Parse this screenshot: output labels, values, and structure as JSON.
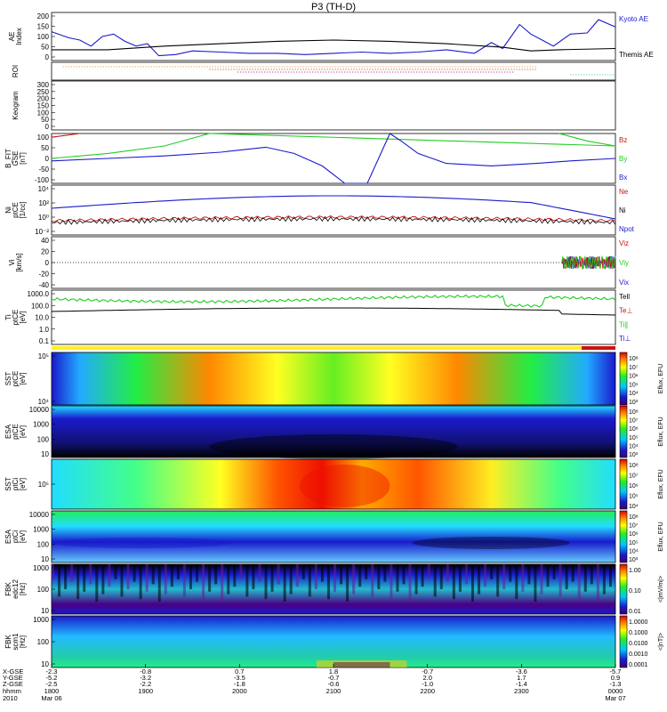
{
  "title": "P3 (TH-D)",
  "chart_data": [
    {
      "type": "line",
      "ylabel": "AE Index",
      "ylim": [
        0,
        200
      ],
      "yticks": [
        "200",
        "150",
        "100",
        "50",
        "0"
      ],
      "series": [
        {
          "name": "Kyoto AE",
          "color": "#1a1acc",
          "x": [
            0.0,
            0.03,
            0.05,
            0.07,
            0.09,
            0.11,
            0.13,
            0.15,
            0.17,
            0.19,
            0.22,
            0.25,
            0.3,
            0.35,
            0.4,
            0.45,
            0.5,
            0.55,
            0.6,
            0.65,
            0.7,
            0.75,
            0.78,
            0.8,
            0.83,
            0.85,
            0.87,
            0.89,
            0.92,
            0.95,
            0.97,
            1.0
          ],
          "y": [
            120,
            95,
            85,
            60,
            100,
            110,
            80,
            60,
            70,
            20,
            25,
            40,
            35,
            30,
            30,
            25,
            30,
            35,
            30,
            35,
            45,
            30,
            75,
            50,
            150,
            110,
            85,
            60,
            110,
            115,
            170,
            140
          ]
        },
        {
          "name": "Themis AE",
          "color": "#000000",
          "x": [
            0.0,
            0.1,
            0.2,
            0.3,
            0.4,
            0.5,
            0.6,
            0.7,
            0.8,
            0.85,
            0.9,
            1.0
          ],
          "y": [
            45,
            45,
            60,
            70,
            80,
            85,
            80,
            70,
            55,
            40,
            45,
            50
          ]
        }
      ]
    },
    {
      "type": "line",
      "ylabel": "ROI",
      "series": []
    },
    {
      "type": "line",
      "ylabel": "Keogram",
      "ylim": [
        0,
        300
      ],
      "yticks": [
        "300",
        "250",
        "200",
        "150",
        "100",
        "50",
        "0"
      ],
      "series": []
    },
    {
      "type": "line",
      "ylabel": "B_FIT GSE [nT]",
      "ylim": [
        -100,
        100
      ],
      "yticks": [
        "100",
        "50",
        "0",
        "-50",
        "-100"
      ],
      "series": [
        {
          "name": "Bz",
          "color": "#cc1111",
          "x": [
            0.0,
            0.05
          ],
          "y": [
            85,
            100
          ]
        },
        {
          "name": "By",
          "color": "#22cc22",
          "x": [
            0.0,
            0.1,
            0.2,
            0.28,
            1.0,
            0.95,
            0.9
          ],
          "y": [
            0,
            20,
            50,
            100,
            50,
            70,
            100
          ]
        },
        {
          "name": "Bx",
          "color": "#1a1acc",
          "x": [
            0.0,
            0.1,
            0.2,
            0.3,
            0.38,
            0.43,
            0.48,
            0.52,
            0.56,
            0.6,
            0.62,
            0.65,
            0.7,
            0.78,
            0.86,
            0.92,
            1.0
          ],
          "y": [
            -10,
            0,
            10,
            25,
            45,
            20,
            -30,
            -100,
            -100,
            100,
            70,
            20,
            -20,
            -30,
            -20,
            -10,
            0
          ]
        }
      ]
    },
    {
      "type": "line",
      "ylabel": "Ni ptCE [1/cc]",
      "ylim": [
        0.01,
        100000
      ],
      "yticks": [
        "10⁴",
        "10²",
        "10⁰",
        "10⁻²"
      ],
      "series": [
        {
          "name": "Ne",
          "color": "#cc1111"
        },
        {
          "name": "Ni",
          "color": "#000000"
        },
        {
          "name": "Npot",
          "color": "#1a1acc"
        }
      ]
    },
    {
      "type": "line",
      "ylabel": "Vi [km/s]",
      "ylim": [
        -50,
        50
      ],
      "yticks": [
        "40",
        "20",
        "0",
        "-20",
        "-40"
      ],
      "series": [
        {
          "name": "Viz",
          "color": "#cc1111"
        },
        {
          "name": "Viy",
          "color": "#22cc22"
        },
        {
          "name": "Vix",
          "color": "#1a1acc"
        }
      ]
    },
    {
      "type": "line",
      "ylabel": "Ti ptCE [eV]",
      "yticks": [
        "1000.0",
        "100.0",
        "10.0",
        "1.0",
        "0.1"
      ],
      "series": [
        {
          "name": "Tell",
          "color": "#000000"
        },
        {
          "name": "Te⊥",
          "color": "#cc1111"
        },
        {
          "name": "Ti∥",
          "color": "#22cc22"
        },
        {
          "name": "Ti⊥",
          "color": "#1a1acc"
        }
      ]
    },
    {
      "type": "heatmap",
      "ylabel": "SST ptCE [eV]",
      "yticks": [
        "10⁵",
        "10⁴"
      ],
      "colorbar": "Eflux, EFU",
      "cticks": [
        "10⁸",
        "10⁷",
        "10⁶",
        "10⁵",
        "10⁴",
        "10³"
      ]
    },
    {
      "type": "heatmap",
      "ylabel": "ESA ptCE [eV]",
      "yticks": [
        "10000",
        "1000",
        "100",
        "10"
      ],
      "colorbar": "Eflux, EFU",
      "cticks": [
        "10⁸",
        "10⁷",
        "10⁶",
        "10⁵",
        "10⁴",
        "10³"
      ]
    },
    {
      "type": "heatmap",
      "ylabel": "SST ptCi [eV]",
      "yticks": [
        "10⁵"
      ],
      "colorbar": "Eflux, EFU",
      "cticks": [
        "10⁸",
        "10⁷",
        "10⁶",
        "10⁵",
        "10⁴"
      ]
    },
    {
      "type": "heatmap",
      "ylabel": "ESA ptCi [eV]",
      "yticks": [
        "10000",
        "1000",
        "100",
        "10"
      ],
      "colorbar": "Eflux, EFU",
      "cticks": [
        "10⁸",
        "10⁷",
        "10⁶",
        "10⁵",
        "10⁴",
        "10³"
      ]
    },
    {
      "type": "heatmap",
      "ylabel": "FBK edc12 [Hz]",
      "yticks": [
        "1000",
        "100",
        "10"
      ],
      "colorbar": "<|mV/m|>",
      "cticks": [
        "1.00",
        "0.10",
        "0.01"
      ]
    },
    {
      "type": "heatmap",
      "ylabel": "FBK scm1 [Hz]",
      "yticks": [
        "1000",
        "100",
        "10"
      ],
      "colorbar": "<|nT|>",
      "cticks": [
        "1.0000",
        "0.1000",
        "0.0100",
        "0.0010",
        "0.0001"
      ]
    }
  ],
  "xaxis": {
    "row_labels": [
      "X-GSE",
      "Y-GSE",
      "Z-GSE",
      "hhmm",
      "2010"
    ],
    "ticks": [
      {
        "x": 0.0,
        "vals": [
          "-2.3",
          "-5.2",
          "-2.5",
          "1800",
          "Mar 06"
        ]
      },
      {
        "x": 0.2,
        "vals": [
          "-0.8",
          "-3.2",
          "-2.2",
          "1900",
          ""
        ]
      },
      {
        "x": 0.4,
        "vals": [
          "0.7",
          "-3.5",
          "-1.8",
          "2000",
          ""
        ]
      },
      {
        "x": 0.6,
        "vals": [
          "1.8",
          "-0.7",
          "-0.6",
          "2100",
          ""
        ]
      },
      {
        "x": 0.8,
        "vals": [
          "-0.7",
          "2.0",
          "-1.0",
          "2200",
          ""
        ]
      },
      {
        "x": 1.0,
        "vals": [
          "-3.6",
          "1.7",
          "-1.4",
          "2300",
          ""
        ]
      },
      {
        "x": 1.2,
        "vals": [
          "-5.7",
          "0.9",
          "-1.3",
          "0000",
          "Mar 07"
        ]
      }
    ]
  }
}
